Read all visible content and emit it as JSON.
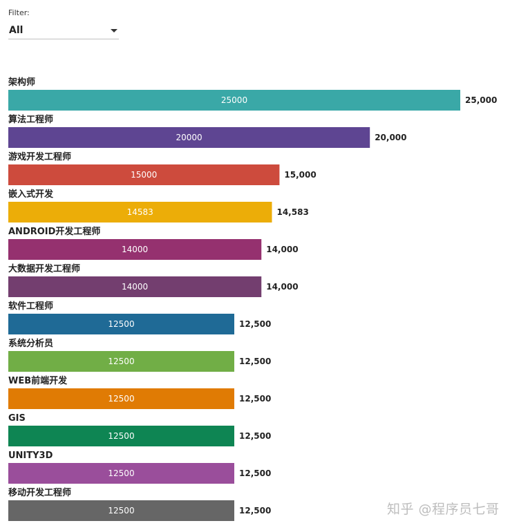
{
  "filter": {
    "label": "Filter:",
    "selected": "All"
  },
  "chart_data": {
    "type": "bar",
    "orientation": "horizontal",
    "categories": [
      "架构师",
      "算法工程师",
      "游戏开发工程师",
      "嵌入式开发",
      "ANDROID开发工程师",
      "大数据开发工程师",
      "软件工程师",
      "系统分析员",
      "WEB前端开发",
      "GIS",
      "UNITY3D",
      "移动开发工程师"
    ],
    "values": [
      25000,
      20000,
      15000,
      14583,
      14000,
      14000,
      12500,
      12500,
      12500,
      12500,
      12500,
      12500
    ],
    "inner_labels": [
      "25000",
      "20000",
      "15000",
      "14583",
      "14000",
      "14000",
      "12500",
      "12500",
      "12500",
      "12500",
      "12500",
      "12500"
    ],
    "outer_labels": [
      "25,000",
      "20,000",
      "15,000",
      "14,583",
      "14,000",
      "14,000",
      "12,500",
      "12,500",
      "12,500",
      "12,500",
      "12,500",
      "12,500"
    ],
    "colors": [
      "#3aa8a7",
      "#5e4592",
      "#cd4b3d",
      "#ecad08",
      "#95316f",
      "#733e6f",
      "#1f6a96",
      "#71ae46",
      "#e07b04",
      "#0e8553",
      "#9a4e9b",
      "#666666"
    ],
    "xlim": [
      0,
      25000
    ],
    "grid": false,
    "legend": "none"
  },
  "watermark": "知乎 @程序员七哥"
}
